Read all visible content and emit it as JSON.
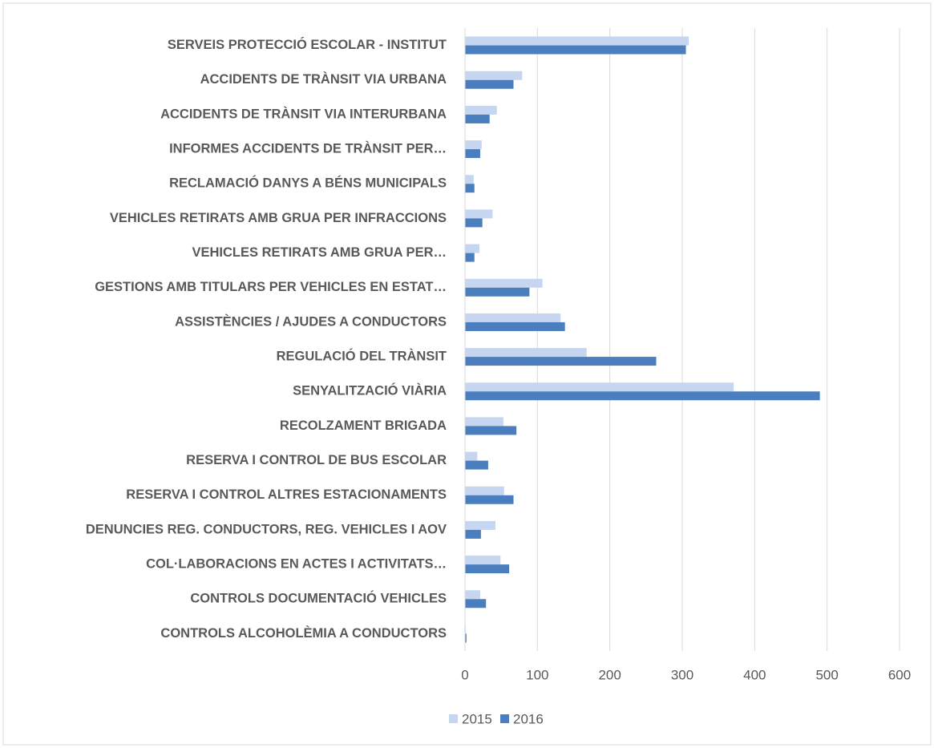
{
  "chart_data": {
    "type": "bar",
    "orientation": "horizontal",
    "categories": [
      "SERVEIS PROTECCIÓ ESCOLAR - INSTITUT",
      "ACCIDENTS DE TRÀNSIT VIA URBANA",
      "ACCIDENTS DE TRÀNSIT VIA INTERURBANA",
      "INFORMES ACCIDENTS DE TRÀNSIT PER…",
      "RECLAMACIÓ DANYS A BÉNS MUNICIPALS",
      "VEHICLES RETIRATS AMB GRUA PER INFRACCIONS",
      "VEHICLES RETIRATS AMB GRUA PER…",
      "GESTIONS AMB TITULARS PER VEHICLES EN ESTAT…",
      "ASSISTÈNCIES / AJUDES A CONDUCTORS",
      "REGULACIÓ DEL TRÀNSIT",
      "SENYALITZACIÓ VIÀRIA",
      "RECOLZAMENT BRIGADA",
      "RESERVA I CONTROL DE BUS ESCOLAR",
      "RESERVA I CONTROL ALTRES ESTACIONAMENTS",
      "DENUNCIES REG. CONDUCTORS, REG. VEHICLES I AOV",
      "COL·LABORACIONS EN ACTES I ACTIVITATS…",
      "CONTROLS DOCUMENTACIÓ VEHICLES",
      "CONTROLS ALCOHOLÈMIA A CONDUCTORS"
    ],
    "series": [
      {
        "name": "2015",
        "color": "#c6d6f0",
        "values": [
          309,
          79,
          44,
          23,
          12,
          38,
          20,
          107,
          132,
          168,
          371,
          53,
          17,
          54,
          42,
          49,
          21,
          1
        ]
      },
      {
        "name": "2016",
        "color": "#4a7ebf",
        "values": [
          305,
          67,
          34,
          21,
          13,
          24,
          13,
          89,
          138,
          264,
          490,
          71,
          32,
          67,
          22,
          61,
          29,
          2
        ]
      }
    ],
    "xlim": [
      0,
      600
    ],
    "xticks": [
      0,
      100,
      200,
      300,
      400,
      500,
      600
    ],
    "grid": true,
    "legend": "bottom"
  }
}
